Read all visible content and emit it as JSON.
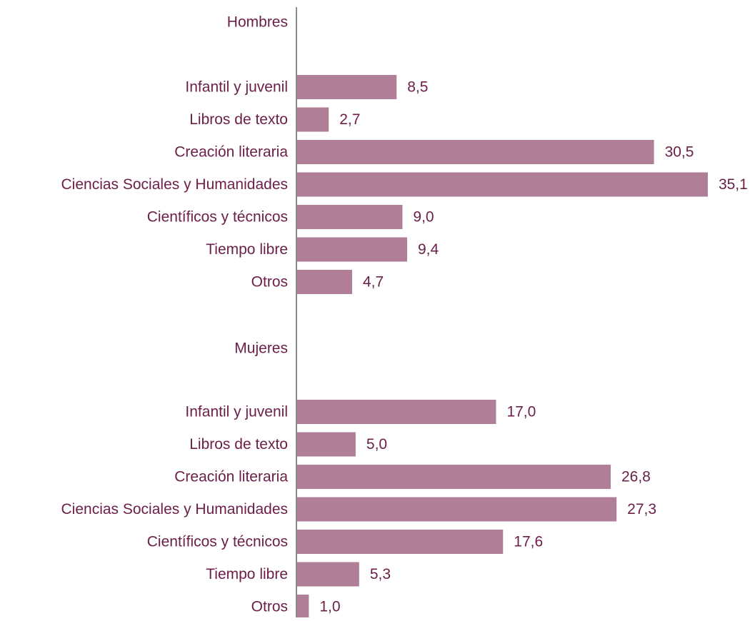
{
  "chart_data": {
    "type": "bar",
    "orientation": "horizontal",
    "grid": false,
    "legend": "none",
    "value_labels": "outside-end",
    "colors": {
      "bar": "#b07f97",
      "text": "#6b1e48",
      "axis": "#8a8a8a"
    },
    "groups": [
      {
        "name": "Hombres",
        "categories": [
          "Infantil y juvenil",
          "Libros de texto",
          "Creación literaria",
          "Ciencias Sociales y Humanidades",
          "Científicos y técnicos",
          "Tiempo libre",
          "Otros"
        ],
        "values": [
          8.5,
          2.7,
          30.5,
          35.1,
          9.0,
          9.4,
          4.7
        ],
        "value_labels": [
          "8,5",
          "2,7",
          "30,5",
          "35,1",
          "9,0",
          "9,4",
          "4,7"
        ]
      },
      {
        "name": "Mujeres",
        "categories": [
          "Infantil y juvenil",
          "Libros de texto",
          "Creación literaria",
          "Ciencias Sociales y Humanidades",
          "Científicos y técnicos",
          "Tiempo libre",
          "Otros"
        ],
        "values": [
          17.0,
          5.0,
          26.8,
          27.3,
          17.6,
          5.3,
          1.0
        ],
        "value_labels": [
          "17,0",
          "5,0",
          "26,8",
          "27,3",
          "17,6",
          "5,3",
          "1,0"
        ]
      }
    ]
  }
}
